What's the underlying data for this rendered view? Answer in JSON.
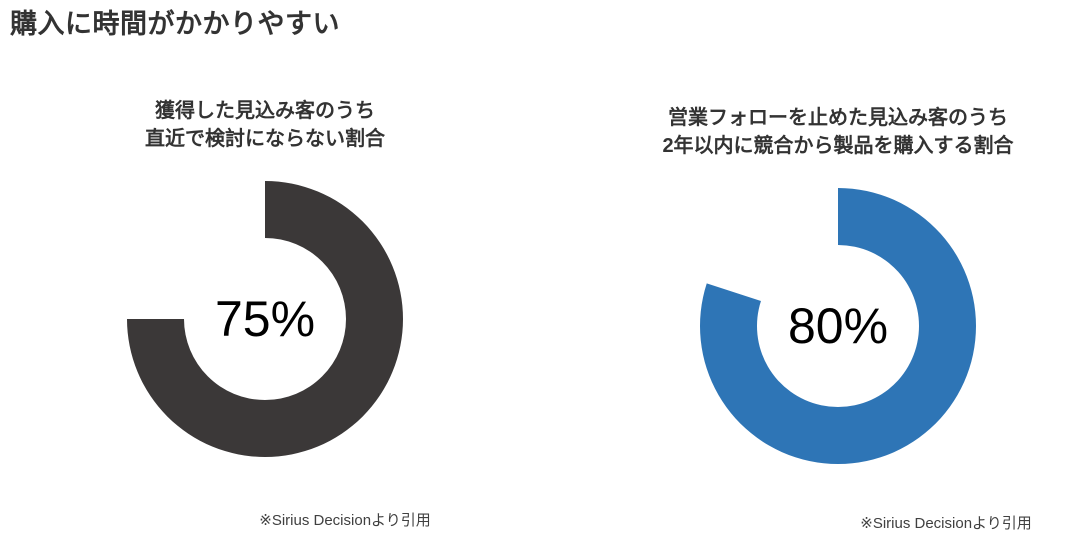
{
  "page": {
    "title": "購入に時間がかかりやすい"
  },
  "chart_data": [
    {
      "type": "donut",
      "title": "獲得した見込み客のうち直近で検討にならない割合",
      "title_lines": [
        "獲得した見込み客のうち",
        "直近で検討にならない割合"
      ],
      "value": 75,
      "max": 100,
      "value_label": "75%",
      "ring_color": "#3b3838",
      "remainder": 25,
      "remainder_style": "blank (white, not drawn)",
      "start_angle_deg": 0,
      "sweep_direction": "clockwise",
      "footnote": "※Sirius Decisionより引用"
    },
    {
      "type": "donut",
      "title": "営業フォローを止めた見込み客のうち2年以内に競合から製品を購入する割合",
      "title_lines": [
        "営業フォローを止めた見込み客のうち",
        "2年以内に競合から製品を購入する割合"
      ],
      "value": 80,
      "max": 100,
      "value_label": "80%",
      "ring_color": "#2e75b6",
      "remainder": 20,
      "remainder_style": "blank (white, not drawn)",
      "start_angle_deg": 0,
      "sweep_direction": "clockwise",
      "footnote": "※Sirius Decisionより引用"
    }
  ]
}
